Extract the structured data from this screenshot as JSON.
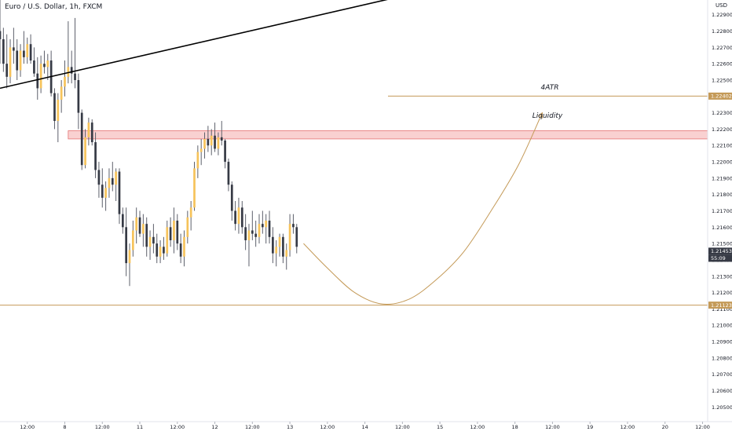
{
  "header": {
    "symbol_title": "Euro / U.S. Dollar, 1h, FXCM",
    "currency": "USD"
  },
  "colors": {
    "bull": "#f6c35b",
    "bear": "#363a45",
    "wick": "#5d606b",
    "level_line": "#c49a58",
    "liquidity_fill": "#f7c1c1",
    "liquidity_stroke": "#e57373",
    "trendline": "#000000",
    "price_badge": "#363a45",
    "level_badge": "#c49a58",
    "axis_text": "#131722",
    "axis_border": "#e0e3eb"
  },
  "chart_data": {
    "type": "candlestick",
    "instrument": "Euro / U.S. Dollar",
    "interval": "1h",
    "source": "FXCM",
    "y_ticks": [
      "1.22900",
      "1.22800",
      "1.22700",
      "1.22600",
      "1.22500",
      "1.22400",
      "1.22300",
      "1.22200",
      "1.22100",
      "1.22000",
      "1.21900",
      "1.21800",
      "1.21700",
      "1.21600",
      "1.21500",
      "1.21400",
      "1.21300",
      "1.21200",
      "1.21100",
      "1.21000",
      "1.20900",
      "1.20800",
      "1.20700",
      "1.20600",
      "1.20500"
    ],
    "x_ticks": [
      "12:00",
      "8",
      "12:00",
      "11",
      "12:00",
      "12",
      "12:00",
      "13",
      "12:00",
      "14",
      "12:00",
      "15",
      "12:00",
      "18",
      "12:00",
      "19",
      "12:00",
      "20",
      "12:00"
    ],
    "x_tick_index": [
      8,
      19,
      30,
      41,
      52,
      63,
      74,
      85,
      96,
      107,
      118,
      129,
      140,
      151,
      162,
      173,
      184,
      195,
      206
    ],
    "ylim": [
      1.2041,
      1.2299
    ],
    "x_range": [
      0,
      207.5
    ],
    "candles": [
      {
        "i": 0,
        "o": 1.228,
        "h": 1.23,
        "l": 1.226,
        "c": 1.2275
      },
      {
        "i": 1,
        "o": 1.2275,
        "h": 1.2282,
        "l": 1.2255,
        "c": 1.226
      },
      {
        "i": 2,
        "o": 1.226,
        "h": 1.2278,
        "l": 1.2245,
        "c": 1.2252
      },
      {
        "i": 3,
        "o": 1.2252,
        "h": 1.2275,
        "l": 1.2248,
        "c": 1.227
      },
      {
        "i": 4,
        "o": 1.227,
        "h": 1.2282,
        "l": 1.226,
        "c": 1.2268
      },
      {
        "i": 5,
        "o": 1.2268,
        "h": 1.2275,
        "l": 1.225,
        "c": 1.2256
      },
      {
        "i": 6,
        "o": 1.2256,
        "h": 1.2272,
        "l": 1.2252,
        "c": 1.2268
      },
      {
        "i": 7,
        "o": 1.2268,
        "h": 1.228,
        "l": 1.226,
        "c": 1.2264
      },
      {
        "i": 8,
        "o": 1.2264,
        "h": 1.2276,
        "l": 1.226,
        "c": 1.2272
      },
      {
        "i": 9,
        "o": 1.2272,
        "h": 1.2278,
        "l": 1.226,
        "c": 1.2262
      },
      {
        "i": 10,
        "o": 1.2262,
        "h": 1.227,
        "l": 1.2252,
        "c": 1.2254
      },
      {
        "i": 11,
        "o": 1.2254,
        "h": 1.2264,
        "l": 1.2238,
        "c": 1.2245
      },
      {
        "i": 12,
        "o": 1.2245,
        "h": 1.2265,
        "l": 1.2242,
        "c": 1.226
      },
      {
        "i": 13,
        "o": 1.226,
        "h": 1.2268,
        "l": 1.2254,
        "c": 1.2258
      },
      {
        "i": 14,
        "o": 1.2258,
        "h": 1.2266,
        "l": 1.225,
        "c": 1.2262
      },
      {
        "i": 15,
        "o": 1.2262,
        "h": 1.2268,
        "l": 1.224,
        "c": 1.2242
      },
      {
        "i": 16,
        "o": 1.2242,
        "h": 1.2245,
        "l": 1.222,
        "c": 1.2225
      },
      {
        "i": 17,
        "o": 1.2225,
        "h": 1.2242,
        "l": 1.2212,
        "c": 1.2238
      },
      {
        "i": 18,
        "o": 1.2238,
        "h": 1.225,
        "l": 1.223,
        "c": 1.2246
      },
      {
        "i": 19,
        "o": 1.2246,
        "h": 1.2262,
        "l": 1.224,
        "c": 1.2252
      },
      {
        "i": 20,
        "o": 1.2252,
        "h": 1.2286,
        "l": 1.2248,
        "c": 1.2258
      },
      {
        "i": 21,
        "o": 1.2258,
        "h": 1.2268,
        "l": 1.2248,
        "c": 1.2254
      },
      {
        "i": 22,
        "o": 1.2254,
        "h": 1.2288,
        "l": 1.2245,
        "c": 1.225
      },
      {
        "i": 23,
        "o": 1.225,
        "h": 1.2254,
        "l": 1.222,
        "c": 1.223
      },
      {
        "i": 24,
        "o": 1.223,
        "h": 1.2232,
        "l": 1.2195,
        "c": 1.2198
      },
      {
        "i": 25,
        "o": 1.2198,
        "h": 1.222,
        "l": 1.2196,
        "c": 1.2215
      },
      {
        "i": 26,
        "o": 1.2215,
        "h": 1.2227,
        "l": 1.221,
        "c": 1.2224
      },
      {
        "i": 27,
        "o": 1.2224,
        "h": 1.2226,
        "l": 1.221,
        "c": 1.2212
      },
      {
        "i": 28,
        "o": 1.2212,
        "h": 1.2218,
        "l": 1.219,
        "c": 1.2195
      },
      {
        "i": 29,
        "o": 1.2195,
        "h": 1.22,
        "l": 1.2178,
        "c": 1.2186
      },
      {
        "i": 30,
        "o": 1.2186,
        "h": 1.2196,
        "l": 1.2172,
        "c": 1.2178
      },
      {
        "i": 31,
        "o": 1.2178,
        "h": 1.2188,
        "l": 1.217,
        "c": 1.2184
      },
      {
        "i": 32,
        "o": 1.2184,
        "h": 1.2196,
        "l": 1.2178,
        "c": 1.219
      },
      {
        "i": 33,
        "o": 1.219,
        "h": 1.22,
        "l": 1.2182,
        "c": 1.2186
      },
      {
        "i": 34,
        "o": 1.2186,
        "h": 1.2196,
        "l": 1.2176,
        "c": 1.2194
      },
      {
        "i": 35,
        "o": 1.2194,
        "h": 1.2196,
        "l": 1.2162,
        "c": 1.2168
      },
      {
        "i": 36,
        "o": 1.2168,
        "h": 1.2172,
        "l": 1.2156,
        "c": 1.216
      },
      {
        "i": 37,
        "o": 1.216,
        "h": 1.2172,
        "l": 1.213,
        "c": 1.2138
      },
      {
        "i": 38,
        "o": 1.2138,
        "h": 1.215,
        "l": 1.2124,
        "c": 1.2146
      },
      {
        "i": 39,
        "o": 1.2146,
        "h": 1.2164,
        "l": 1.2142,
        "c": 1.2158
      },
      {
        "i": 40,
        "o": 1.2158,
        "h": 1.2172,
        "l": 1.215,
        "c": 1.2166
      },
      {
        "i": 41,
        "o": 1.2166,
        "h": 1.217,
        "l": 1.2154,
        "c": 1.2156
      },
      {
        "i": 42,
        "o": 1.2156,
        "h": 1.2168,
        "l": 1.2148,
        "c": 1.2162
      },
      {
        "i": 43,
        "o": 1.2162,
        "h": 1.2166,
        "l": 1.2142,
        "c": 1.2148
      },
      {
        "i": 44,
        "o": 1.2148,
        "h": 1.2158,
        "l": 1.214,
        "c": 1.2154
      },
      {
        "i": 45,
        "o": 1.2154,
        "h": 1.2162,
        "l": 1.2144,
        "c": 1.215
      },
      {
        "i": 46,
        "o": 1.215,
        "h": 1.2156,
        "l": 1.2138,
        "c": 1.2142
      },
      {
        "i": 47,
        "o": 1.2142,
        "h": 1.2152,
        "l": 1.2138,
        "c": 1.2148
      },
      {
        "i": 48,
        "o": 1.2148,
        "h": 1.2154,
        "l": 1.214,
        "c": 1.2144
      },
      {
        "i": 49,
        "o": 1.2144,
        "h": 1.2164,
        "l": 1.2142,
        "c": 1.216
      },
      {
        "i": 50,
        "o": 1.216,
        "h": 1.2166,
        "l": 1.2148,
        "c": 1.2152
      },
      {
        "i": 51,
        "o": 1.2152,
        "h": 1.2172,
        "l": 1.2144,
        "c": 1.2164
      },
      {
        "i": 52,
        "o": 1.2164,
        "h": 1.2168,
        "l": 1.2146,
        "c": 1.215
      },
      {
        "i": 53,
        "o": 1.215,
        "h": 1.2156,
        "l": 1.2138,
        "c": 1.2142
      },
      {
        "i": 54,
        "o": 1.2142,
        "h": 1.2158,
        "l": 1.2136,
        "c": 1.2154
      },
      {
        "i": 55,
        "o": 1.2154,
        "h": 1.217,
        "l": 1.215,
        "c": 1.2166
      },
      {
        "i": 56,
        "o": 1.2166,
        "h": 1.2176,
        "l": 1.2158,
        "c": 1.2172
      },
      {
        "i": 57,
        "o": 1.2172,
        "h": 1.22,
        "l": 1.217,
        "c": 1.2196
      },
      {
        "i": 58,
        "o": 1.2196,
        "h": 1.221,
        "l": 1.219,
        "c": 1.2206
      },
      {
        "i": 59,
        "o": 1.2206,
        "h": 1.2214,
        "l": 1.2198,
        "c": 1.2208
      },
      {
        "i": 60,
        "o": 1.2208,
        "h": 1.2218,
        "l": 1.2202,
        "c": 1.2214
      },
      {
        "i": 61,
        "o": 1.2214,
        "h": 1.2222,
        "l": 1.2206,
        "c": 1.221
      },
      {
        "i": 62,
        "o": 1.221,
        "h": 1.222,
        "l": 1.2204,
        "c": 1.2216
      },
      {
        "i": 63,
        "o": 1.2216,
        "h": 1.2224,
        "l": 1.2206,
        "c": 1.2208
      },
      {
        "i": 64,
        "o": 1.2208,
        "h": 1.2218,
        "l": 1.2204,
        "c": 1.2215
      },
      {
        "i": 65,
        "o": 1.2215,
        "h": 1.2225,
        "l": 1.221,
        "c": 1.2213
      },
      {
        "i": 66,
        "o": 1.2213,
        "h": 1.2214,
        "l": 1.2196,
        "c": 1.22
      },
      {
        "i": 67,
        "o": 1.22,
        "h": 1.2202,
        "l": 1.2182,
        "c": 1.2186
      },
      {
        "i": 68,
        "o": 1.2186,
        "h": 1.2188,
        "l": 1.2164,
        "c": 1.217
      },
      {
        "i": 69,
        "o": 1.217,
        "h": 1.2176,
        "l": 1.2158,
        "c": 1.2162
      },
      {
        "i": 70,
        "o": 1.2162,
        "h": 1.2178,
        "l": 1.2156,
        "c": 1.2172
      },
      {
        "i": 71,
        "o": 1.2172,
        "h": 1.2176,
        "l": 1.2156,
        "c": 1.216
      },
      {
        "i": 72,
        "o": 1.216,
        "h": 1.2168,
        "l": 1.2146,
        "c": 1.2152
      },
      {
        "i": 73,
        "o": 1.2152,
        "h": 1.2162,
        "l": 1.2136,
        "c": 1.2158
      },
      {
        "i": 74,
        "o": 1.2158,
        "h": 1.217,
        "l": 1.2152,
        "c": 1.2156
      },
      {
        "i": 75,
        "o": 1.2156,
        "h": 1.2164,
        "l": 1.2148,
        "c": 1.2154
      },
      {
        "i": 76,
        "o": 1.2154,
        "h": 1.2168,
        "l": 1.215,
        "c": 1.2162
      },
      {
        "i": 77,
        "o": 1.2162,
        "h": 1.217,
        "l": 1.2156,
        "c": 1.216
      },
      {
        "i": 78,
        "o": 1.216,
        "h": 1.2168,
        "l": 1.215,
        "c": 1.2164
      },
      {
        "i": 79,
        "o": 1.2164,
        "h": 1.217,
        "l": 1.215,
        "c": 1.2154
      },
      {
        "i": 80,
        "o": 1.2154,
        "h": 1.216,
        "l": 1.2138,
        "c": 1.2144
      },
      {
        "i": 81,
        "o": 1.2144,
        "h": 1.2152,
        "l": 1.2136,
        "c": 1.2148
      },
      {
        "i": 82,
        "o": 1.2148,
        "h": 1.2156,
        "l": 1.2142,
        "c": 1.2154
      },
      {
        "i": 83,
        "o": 1.2154,
        "h": 1.2156,
        "l": 1.2138,
        "c": 1.2142
      },
      {
        "i": 84,
        "o": 1.2142,
        "h": 1.215,
        "l": 1.2134,
        "c": 1.2146
      },
      {
        "i": 85,
        "o": 1.2146,
        "h": 1.2168,
        "l": 1.2142,
        "c": 1.2162
      },
      {
        "i": 86,
        "o": 1.2162,
        "h": 1.2168,
        "l": 1.2156,
        "c": 1.216
      },
      {
        "i": 87,
        "o": 1.216,
        "h": 1.2162,
        "l": 1.2144,
        "c": 1.2148
      }
    ],
    "levels": [
      {
        "name": "4ATR",
        "price": 1.22402,
        "badge": "1.22402"
      },
      {
        "name": "",
        "price": 1.21123,
        "badge": "1.21123"
      }
    ],
    "current_price": {
      "price": 1.21453,
      "badge": "1.21453",
      "countdown": "55:09"
    },
    "liquidity_zone": {
      "label": "Liquidity",
      "from_i": 20,
      "to_i": 207.5,
      "y_low": 1.2214,
      "y_high": 1.2219
    },
    "trendline": {
      "i1": 0,
      "p1": 1.2245,
      "i2": 115,
      "p2": 1.23
    },
    "projection_path": [
      {
        "i": 89,
        "p": 1.215
      },
      {
        "i": 96,
        "p": 1.2135
      },
      {
        "i": 104,
        "p": 1.212
      },
      {
        "i": 112,
        "p": 1.2113
      },
      {
        "i": 120,
        "p": 1.2116
      },
      {
        "i": 128,
        "p": 1.2128
      },
      {
        "i": 136,
        "p": 1.2145
      },
      {
        "i": 144,
        "p": 1.217
      },
      {
        "i": 152,
        "p": 1.2198
      },
      {
        "i": 159,
        "p": 1.223
      }
    ],
    "level_label_4atr": "4ATR",
    "liquidity_label": "Liquidity"
  }
}
